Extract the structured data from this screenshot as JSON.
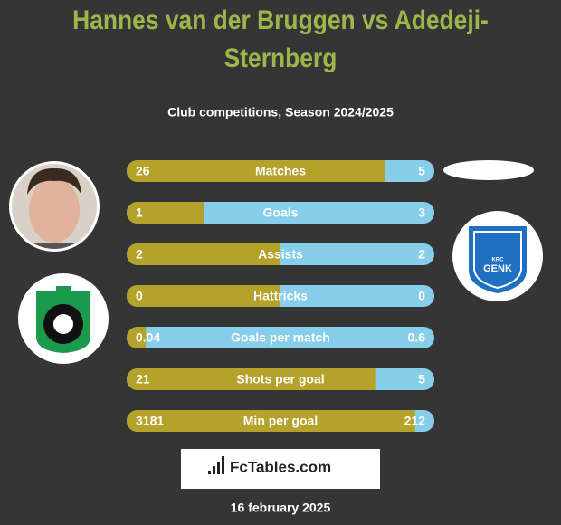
{
  "header": {
    "title": "Hannes van der Bruggen vs Adedeji-Sternberg",
    "subtitle": "Club competitions, Season 2024/2025"
  },
  "rows": [
    {
      "label": "Matches",
      "left": 26,
      "right": 5
    },
    {
      "label": "Goals",
      "left": 1,
      "right": 3
    },
    {
      "label": "Assists",
      "left": 2,
      "right": 2
    },
    {
      "label": "Hattricks",
      "left": 0,
      "right": 0
    },
    {
      "label": "Goals per match",
      "left": 0.04,
      "right": 0.6
    },
    {
      "label": "Shots per goal",
      "left": 21,
      "right": 5
    },
    {
      "label": "Min per goal",
      "left": 3181,
      "right": 212
    }
  ],
  "right_logo": {
    "line1": "KRC",
    "line2": "GENK"
  },
  "brand": "FcTables.com",
  "date": "16 february 2025"
}
